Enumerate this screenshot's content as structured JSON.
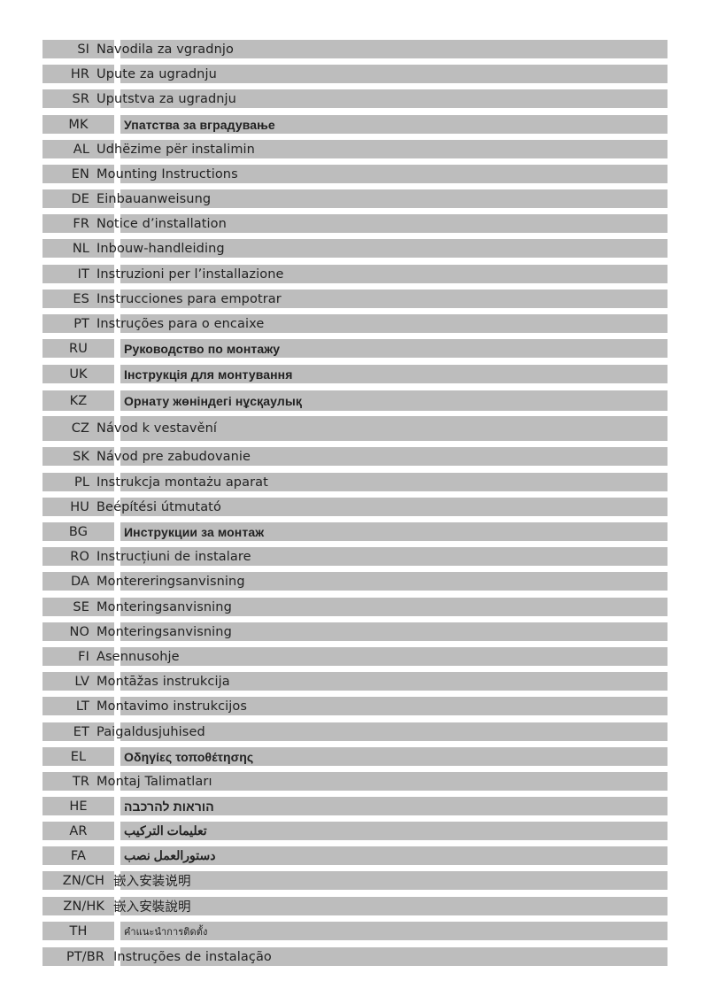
{
  "colors": {
    "bar": "#bdbdbd",
    "text": "#222222"
  },
  "rows": [
    {
      "code": "SI",
      "title": "Navodila za vgradnjo",
      "type": "latin"
    },
    {
      "code": "HR",
      "title": "Upute za ugradnju",
      "type": "latin"
    },
    {
      "code": "SR",
      "title": "Uputstva za ugradnju",
      "type": "latin"
    },
    {
      "code": "MK",
      "title": "Упатства за вградување",
      "type": "script"
    },
    {
      "code": "AL",
      "title": "Udhëzime për instalimin",
      "type": "latin"
    },
    {
      "code": "EN",
      "title": "Mounting Instructions",
      "type": "latin"
    },
    {
      "code": "DE",
      "title": "Einbauanweisung",
      "type": "latin"
    },
    {
      "code": "FR",
      "title": "Notice d’installation",
      "type": "latin"
    },
    {
      "code": "NL",
      "title": "Inbouw-handleiding",
      "type": "latin"
    },
    {
      "code": "IT",
      "title": "Instruzioni per l’installazione",
      "type": "latin"
    },
    {
      "code": "ES",
      "title": "Instrucciones para empotrar",
      "type": "latin"
    },
    {
      "code": "PT",
      "title": "Instruções para o encaixe",
      "type": "latin"
    },
    {
      "code": "RU",
      "title": "Руководство по монтажу",
      "type": "script"
    },
    {
      "code": "UK",
      "title": "Інструкція для монтування",
      "type": "script"
    },
    {
      "code": "KZ",
      "title": "Орнату жөніндегі нұсқаулық",
      "type": "script"
    },
    {
      "code": "CZ",
      "title": "Návod k vestavění",
      "type": "latin"
    },
    {
      "code": "SK",
      "title": "Návod pre zabudovanie",
      "type": "latin"
    },
    {
      "code": "PL",
      "title": "Instrukcja montażu aparat",
      "type": "latin"
    },
    {
      "code": "HU",
      "title": "Beépítési útmutató",
      "type": "latin"
    },
    {
      "code": "BG",
      "title": "Инструкции за монтаж",
      "type": "script"
    },
    {
      "code": "RO",
      "title": "Instrucțiuni de instalare",
      "type": "latin"
    },
    {
      "code": "DA",
      "title": "Montereringsanvisning",
      "type": "latin"
    },
    {
      "code": "SE",
      "title": "Monteringsanvisning",
      "type": "latin"
    },
    {
      "code": "NO",
      "title": "Monteringsanvisning",
      "type": "latin"
    },
    {
      "code": "FI",
      "title": "Asennusohje",
      "type": "latin"
    },
    {
      "code": "LV",
      "title": "Montāžas instrukcija",
      "type": "latin"
    },
    {
      "code": "LT",
      "title": "Montavimo instrukcijos",
      "type": "latin"
    },
    {
      "code": "ET",
      "title": "Paigaldusjuhised",
      "type": "latin"
    },
    {
      "code": "EL",
      "title": "Οδηγίες τοποθέτησης",
      "type": "script"
    },
    {
      "code": "TR",
      "title": "Montaj Talimatları",
      "type": "latin"
    },
    {
      "code": "HE",
      "title": "הוראות להרכבה",
      "type": "script"
    },
    {
      "code": "AR",
      "title": "تعليمات التركيب",
      "type": "script"
    },
    {
      "code": "FA",
      "title": "دستورالعمل نصب",
      "type": "script"
    },
    {
      "code": "ZN/CH",
      "title": "嵌入安装说明",
      "type": "wide"
    },
    {
      "code": "ZN/HK",
      "title": "嵌入安裝說明",
      "type": "wide"
    },
    {
      "code": "TH",
      "title": "คำแนะนำการติดตั้ง",
      "type": "script small"
    },
    {
      "code": "PT/BR",
      "title": "Instruções de instalação",
      "type": "wide"
    }
  ]
}
